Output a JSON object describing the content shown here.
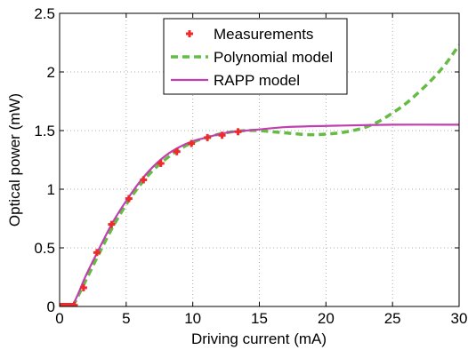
{
  "chart_data": {
    "type": "line",
    "title": "",
    "xlabel": "Driving current (mA)",
    "ylabel": "Optical power (mW)",
    "xlim": [
      0,
      30
    ],
    "ylim": [
      0,
      2.5
    ],
    "x_ticks": [
      0,
      5,
      10,
      15,
      20,
      25,
      30
    ],
    "x_tick_labels": [
      "0",
      "5",
      "10",
      "15",
      "20",
      "25",
      "30"
    ],
    "y_ticks": [
      0,
      0.5,
      1,
      1.5,
      2,
      2.5
    ],
    "y_tick_labels": [
      "0",
      "0.5",
      "1",
      "1.5",
      "2",
      "2.5"
    ],
    "grid": true,
    "legend_position": "top-center",
    "series": [
      {
        "name": "Measurements",
        "kind": "scatter",
        "color": "#ee2b2b",
        "x": [
          0.1,
          0.3,
          0.5,
          0.7,
          0.9,
          1.1,
          1.8,
          2.8,
          3.9,
          5.2,
          6.3,
          7.6,
          8.8,
          9.9,
          11.1,
          12.2,
          13.4
        ],
        "y": [
          0,
          0,
          0,
          0,
          0,
          0.01,
          0.16,
          0.46,
          0.7,
          0.92,
          1.08,
          1.22,
          1.32,
          1.39,
          1.44,
          1.46,
          1.49
        ]
      },
      {
        "name": "Polynomial model",
        "kind": "line",
        "style": "dashed",
        "color": "#66bb44",
        "x": [
          1,
          2,
          3,
          4,
          5,
          6,
          7,
          8,
          9,
          10,
          11,
          12,
          13,
          14,
          15,
          16,
          17,
          18,
          19,
          20,
          21,
          22,
          23,
          24,
          25,
          26,
          27,
          28,
          29,
          30
        ],
        "y": [
          0.0,
          0.23,
          0.46,
          0.68,
          0.87,
          1.03,
          1.16,
          1.26,
          1.34,
          1.4,
          1.44,
          1.47,
          1.49,
          1.5,
          1.5,
          1.49,
          1.48,
          1.47,
          1.465,
          1.47,
          1.48,
          1.5,
          1.53,
          1.58,
          1.65,
          1.73,
          1.83,
          1.94,
          2.07,
          2.23
        ]
      },
      {
        "name": "RAPP model",
        "kind": "line",
        "style": "solid",
        "color": "#c040b0",
        "x": [
          0,
          0.9,
          2,
          3,
          4,
          5,
          6,
          7,
          8,
          9,
          10,
          11,
          12,
          13,
          14,
          15,
          17,
          20,
          25,
          30
        ],
        "y": [
          0,
          0,
          0.27,
          0.5,
          0.72,
          0.9,
          1.06,
          1.19,
          1.29,
          1.36,
          1.41,
          1.44,
          1.47,
          1.49,
          1.5,
          1.51,
          1.53,
          1.54,
          1.55,
          1.55
        ]
      }
    ]
  }
}
